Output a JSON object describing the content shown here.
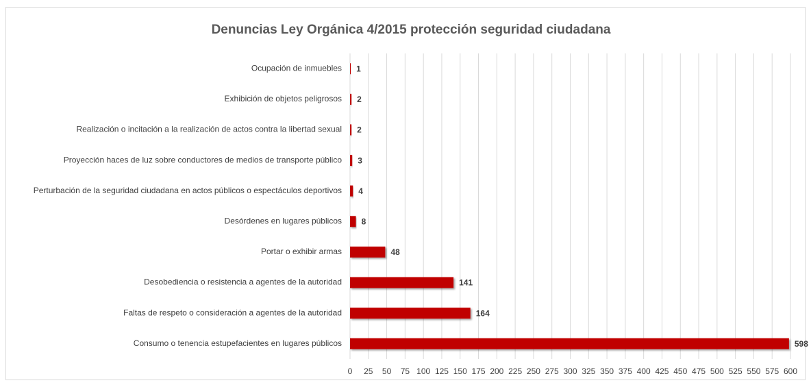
{
  "chart_data": {
    "type": "bar",
    "orientation": "horizontal",
    "title": "Denuncias Ley Orgánica 4/2015 protección seguridad ciudadana",
    "categories": [
      "Ocupación de inmuebles",
      "Exhibición de objetos peligrosos",
      "Realización o incitación a la realización de actos contra la libertad sexual",
      "Proyección haces de luz sobre conductores de medios de transporte público",
      "Perturbación de la seguridad ciudadana en actos públicos o espectáculos deportivos",
      "Desórdenes en lugares públicos",
      "Portar o exhibir armas",
      "Desobediencia o resistencia a agentes de la autoridad",
      "Faltas de respeto o consideración a agentes de la autoridad",
      "Consumo o tenencia estupefacientes en lugares públicos"
    ],
    "values": [
      1,
      2,
      2,
      3,
      4,
      8,
      48,
      141,
      164,
      598
    ],
    "color": "#c00000",
    "xlim": [
      0,
      600
    ],
    "xticks": [
      0,
      25,
      50,
      75,
      100,
      125,
      150,
      175,
      200,
      225,
      250,
      275,
      300,
      325,
      350,
      375,
      400,
      425,
      450,
      475,
      500,
      525,
      550,
      575,
      600
    ],
    "grid": true
  }
}
